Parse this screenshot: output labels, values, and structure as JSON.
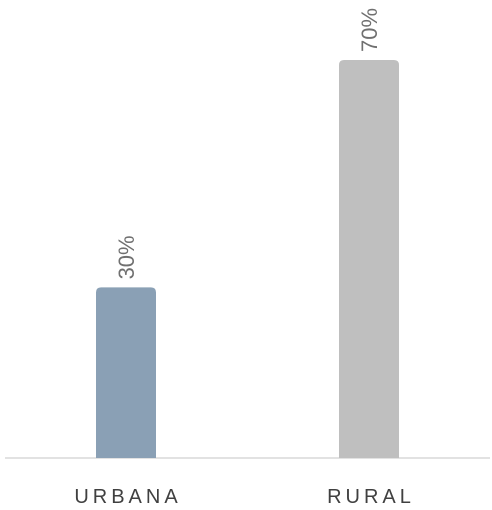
{
  "chart_data": {
    "type": "bar",
    "categories": [
      "URBANA",
      "RURAL"
    ],
    "values": [
      30,
      70
    ],
    "value_labels": [
      "30%",
      "70%"
    ],
    "colors": [
      "#8aa0b5",
      "#bfbfbf"
    ]
  }
}
